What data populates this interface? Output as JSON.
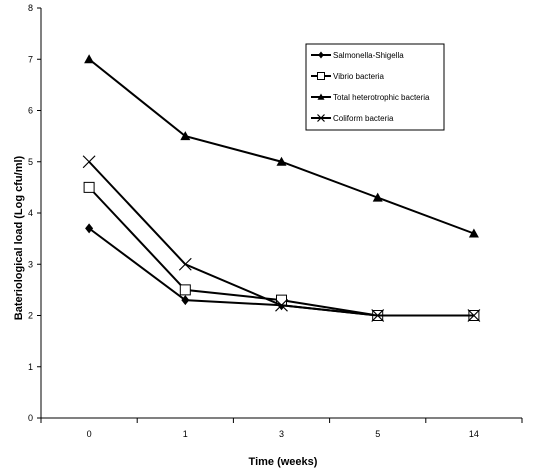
{
  "chart_data": {
    "type": "line",
    "title": "",
    "xlabel": "Time (weeks)",
    "ylabel": "Bateriological load (Log cfu/ml)",
    "categories": [
      "0",
      "1",
      "3",
      "5",
      "14"
    ],
    "ylim": [
      0,
      8
    ],
    "yticks": [
      "0",
      "1",
      "2",
      "3",
      "4",
      "5",
      "6",
      "7",
      "8"
    ],
    "grid": false,
    "legend_position": "top-right",
    "series": [
      {
        "name": "Salmonella-Shigella",
        "marker": "diamond",
        "values": [
          3.7,
          2.3,
          2.2,
          2.0,
          2.0
        ]
      },
      {
        "name": "Vibrio bacteria",
        "marker": "square-open",
        "values": [
          4.5,
          2.5,
          2.3,
          2.0,
          2.0
        ]
      },
      {
        "name": "Total heterotrophic bacteria",
        "marker": "triangle",
        "values": [
          7.0,
          5.5,
          5.0,
          4.3,
          3.6
        ]
      },
      {
        "name": "Coliform bacteria",
        "marker": "x",
        "values": [
          5.0,
          3.0,
          2.2,
          2.0,
          2.0
        ]
      }
    ]
  }
}
